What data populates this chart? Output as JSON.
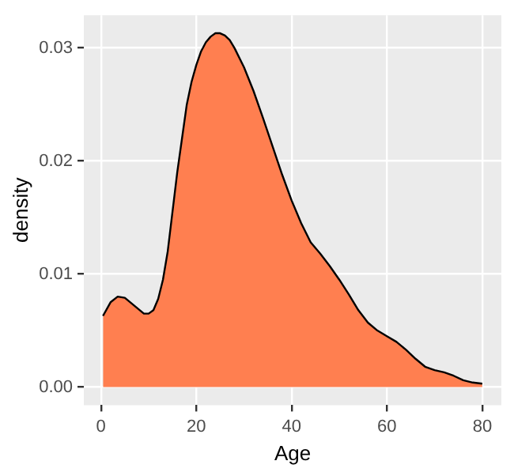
{
  "chart_data": {
    "type": "area",
    "xlabel": "Age",
    "ylabel": "density",
    "x": [
      0.42,
      2,
      3.5,
      5,
      7,
      9,
      10,
      11,
      12,
      13,
      14,
      15,
      16,
      17,
      18,
      19,
      20,
      21,
      22,
      23,
      24,
      25,
      26,
      27,
      28,
      30,
      32,
      34,
      36,
      38,
      40,
      42,
      44,
      46,
      48,
      50,
      52,
      54,
      56,
      58,
      60,
      62,
      64,
      66,
      68,
      70,
      72,
      74,
      76,
      78,
      80
    ],
    "series": [
      {
        "color": "#ff7f50",
        "values": [
          0.0063,
          0.0075,
          0.008,
          0.0079,
          0.0072,
          0.0065,
          0.0065,
          0.0068,
          0.0078,
          0.0095,
          0.012,
          0.0155,
          0.019,
          0.022,
          0.025,
          0.027,
          0.0285,
          0.0297,
          0.0305,
          0.031,
          0.0313,
          0.0313,
          0.0311,
          0.0307,
          0.03,
          0.0283,
          0.0262,
          0.0238,
          0.0213,
          0.0188,
          0.0165,
          0.0145,
          0.0128,
          0.0118,
          0.0107,
          0.0095,
          0.0082,
          0.0068,
          0.0057,
          0.005,
          0.0045,
          0.004,
          0.0033,
          0.0025,
          0.0018,
          0.0015,
          0.0013,
          0.001,
          0.0006,
          0.0004,
          0.0003
        ]
      }
    ],
    "xlim": [
      -3.6,
      84
    ],
    "xticks": [
      0,
      20,
      40,
      60,
      80
    ],
    "ylim": [
      -0.0016,
      0.0329
    ],
    "yticks": [
      {
        "value": 0,
        "label": "0.00"
      },
      {
        "value": 0.01,
        "label": "0.01"
      },
      {
        "value": 0.02,
        "label": "0.02"
      },
      {
        "value": 0.03,
        "label": "0.03"
      }
    ],
    "grid": true,
    "legend": false,
    "marker": "none",
    "line_style": "solid"
  }
}
